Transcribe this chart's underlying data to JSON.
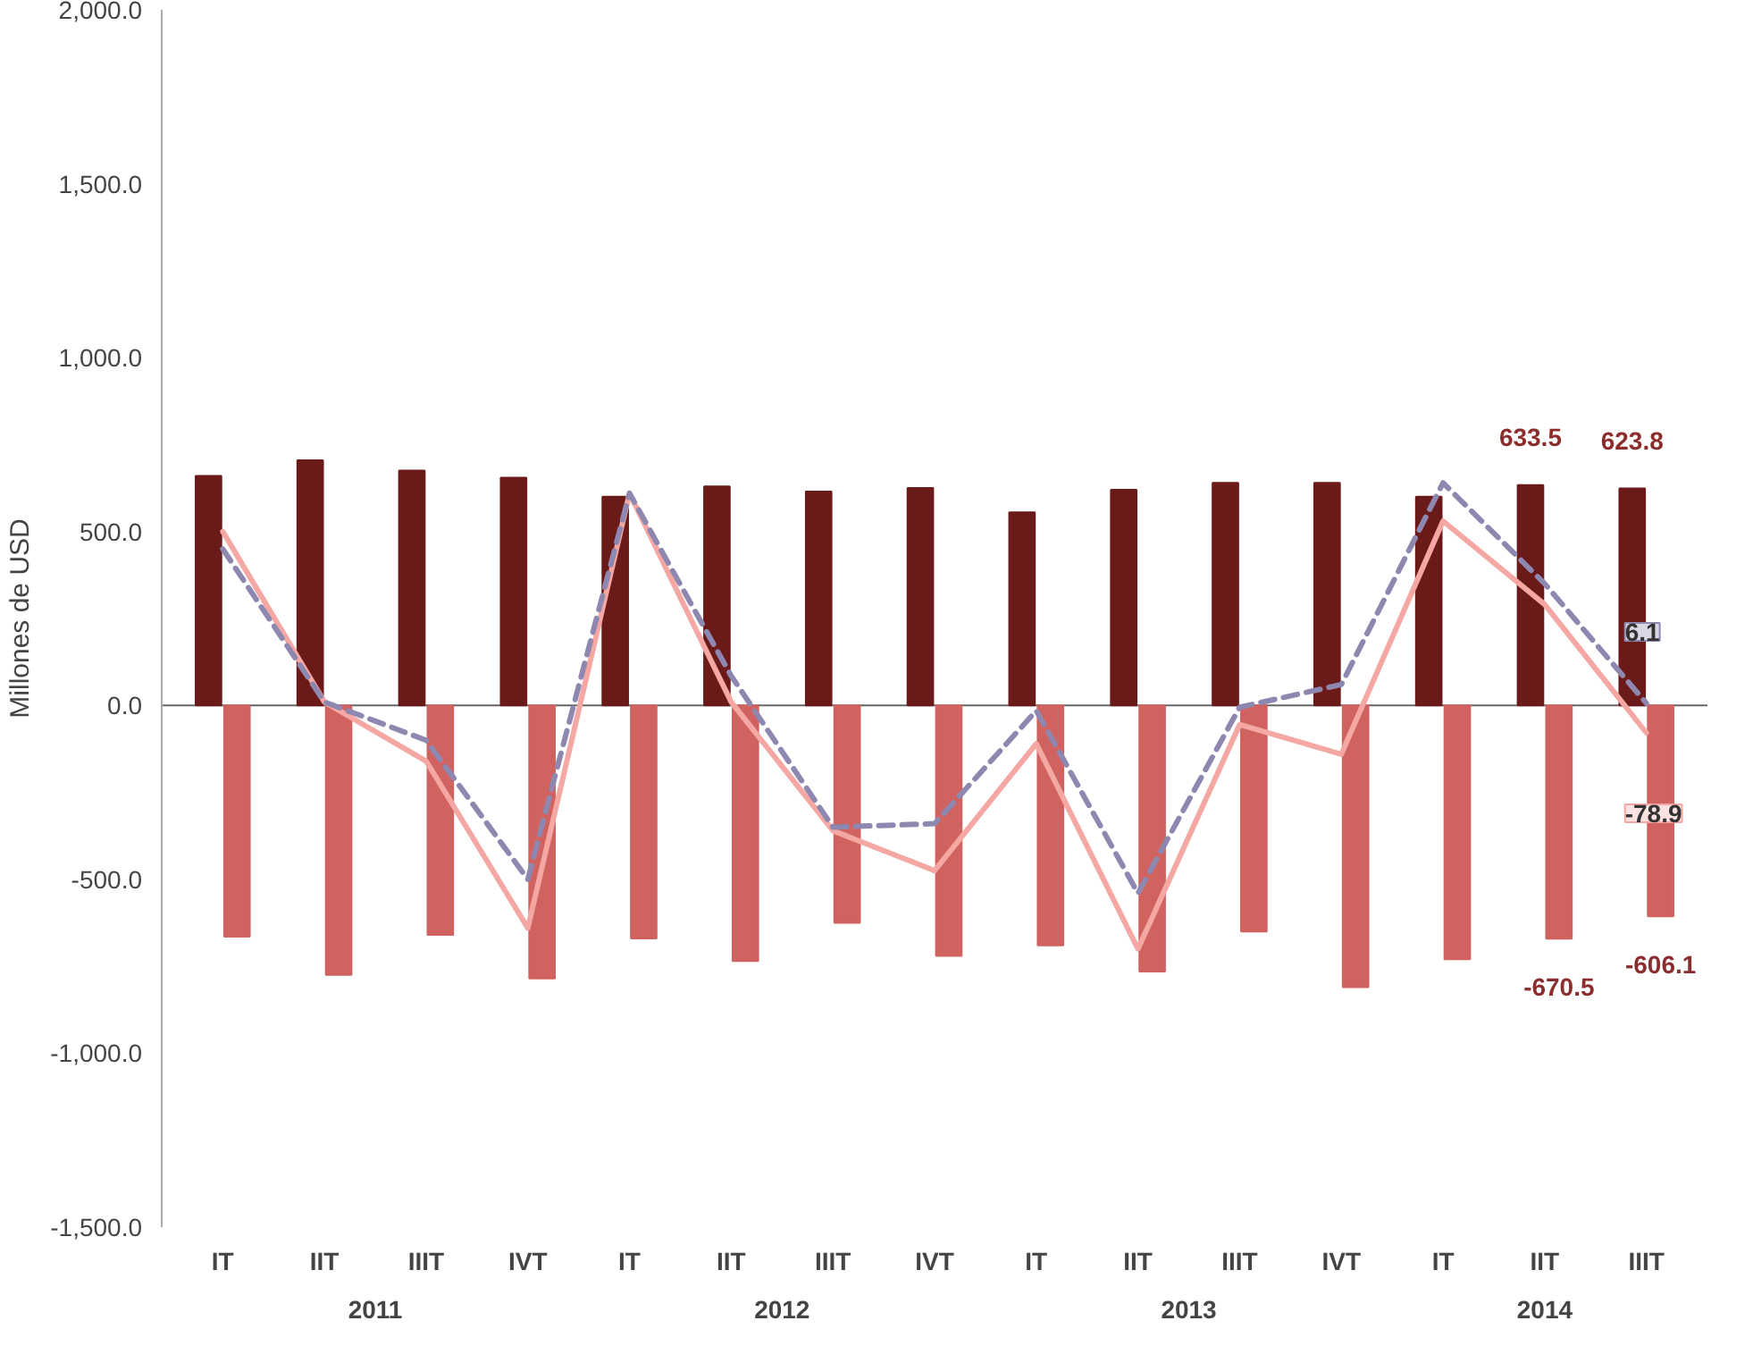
{
  "chart_data": {
    "type": "bar",
    "ylabel": "Millones de USD",
    "categories": [
      "IT",
      "IIT",
      "IIIT",
      "IVT",
      "IT",
      "IIT",
      "IIIT",
      "IVT",
      "IT",
      "IIT",
      "IIIT",
      "IVT",
      "IT",
      "IIT",
      "IIIT"
    ],
    "annotations": [
      "2011",
      "2012",
      "2013",
      "2014"
    ],
    "ylim": [
      -1500,
      2000
    ],
    "yticks": [
      {
        "value": -1500,
        "label": "-1,500.0"
      },
      {
        "value": -1000,
        "label": "-1,000.0"
      },
      {
        "value": -500,
        "label": "-500.0"
      },
      {
        "value": 0,
        "label": "0.0"
      },
      {
        "value": 500,
        "label": "500.0"
      },
      {
        "value": 1000,
        "label": "1,000.0"
      },
      {
        "value": 1500,
        "label": "1,500.0"
      },
      {
        "value": 2000,
        "label": "2,000.0"
      }
    ],
    "series": [
      {
        "color": "#6b1a1a",
        "values": [
          660,
          705,
          675,
          655,
          600,
          630,
          615,
          625,
          555,
          620,
          640,
          640,
          600,
          633.5,
          623.8
        ],
        "value_labels": [
          null,
          null,
          null,
          null,
          null,
          null,
          null,
          null,
          null,
          null,
          null,
          null,
          null,
          "633.5",
          "623.8"
        ]
      },
      {
        "color": "#d0625f",
        "values": [
          -665,
          -775,
          -660,
          -785,
          -670,
          -735,
          -625,
          -720,
          -690,
          -765,
          -650,
          -810,
          -730,
          -670.5,
          -606.1
        ],
        "value_labels": [
          null,
          null,
          null,
          null,
          null,
          null,
          null,
          null,
          null,
          null,
          null,
          null,
          null,
          "-670.5",
          "-606.1"
        ]
      },
      {
        "type": "line",
        "color": "#f4a7a3",
        "line_style": "solid",
        "values": [
          500,
          10,
          -160,
          -640,
          610,
          10,
          -360,
          -475,
          -110,
          -700,
          -55,
          -140,
          530,
          290,
          -78.9
        ],
        "value_labels": [
          null,
          null,
          null,
          null,
          null,
          null,
          null,
          null,
          null,
          null,
          null,
          null,
          null,
          null,
          "-78.9"
        ]
      },
      {
        "type": "line",
        "color": "#8e88b0",
        "line_style": "dashed",
        "values": [
          450,
          10,
          -100,
          -500,
          610,
          85,
          -350,
          -340,
          -15,
          -540,
          -5,
          60,
          640,
          350,
          6.1
        ],
        "value_labels": [
          null,
          null,
          null,
          null,
          null,
          null,
          null,
          null,
          null,
          null,
          null,
          null,
          null,
          null,
          "6.1"
        ]
      }
    ]
  }
}
